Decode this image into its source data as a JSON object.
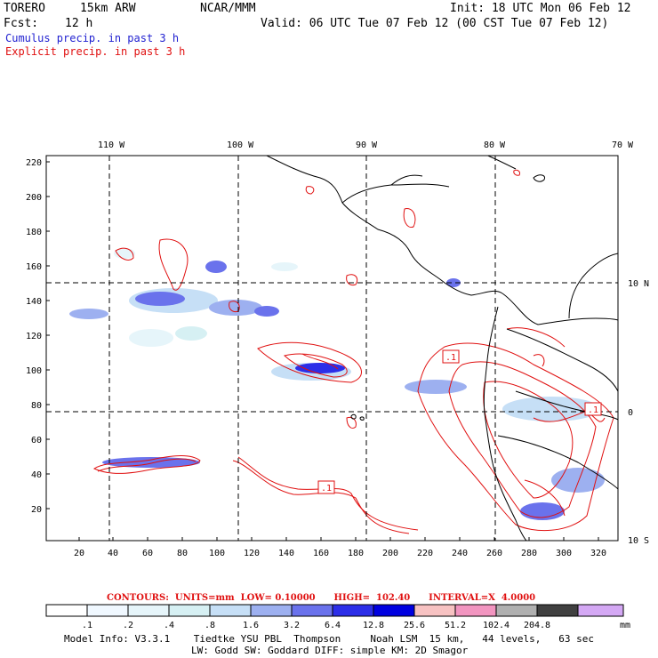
{
  "header": {
    "model": "TORERO",
    "resolution": "15km ARW",
    "org": "NCAR/MMM",
    "init": "Init: 18 UTC Mon 06 Feb 12",
    "fcst_label": "Fcst:",
    "fcst_value": "12 h",
    "valid": "Valid: 06 UTC Tue 07 Feb 12 (00 CST Tue 07 Feb 12)",
    "line_cumulus": "Cumulus precip. in past 3 h",
    "line_explicit": "Explicit precip. in past 3 h"
  },
  "colors": {
    "cumulus": "#1f1fd0",
    "explicit": "#e01010",
    "coast": "#000000"
  },
  "axes": {
    "top_labels": [
      "110 W",
      "100 W",
      "90 W",
      "80 W",
      "70 W"
    ],
    "right_labels": [
      "10 N",
      "0",
      "10 S"
    ],
    "left_ticks": [
      "220",
      "200",
      "180",
      "160",
      "140",
      "120",
      "100",
      "80",
      "60",
      "40",
      "20"
    ],
    "bottom_ticks": [
      "20",
      "40",
      "60",
      "80",
      "100",
      "120",
      "140",
      "160",
      "180",
      "200",
      "220",
      "240",
      "260",
      "280",
      "300",
      "320"
    ]
  },
  "labels": {
    "contour_a": ".1",
    "contour_b": ".1",
    "contour_c": ".1"
  },
  "contour_info": "CONTOURS:  UNITS=mm  LOW= 0.10000      HIGH=  102.40      INTERVAL=X  4.0000",
  "legend": {
    "values": [
      ".1",
      ".2",
      ".4",
      ".8",
      "1.6",
      "3.2",
      "6.4",
      "12.8",
      "25.6",
      "51.2",
      "102.4",
      "204.8"
    ],
    "unit": "mm",
    "colors": [
      "#ffffff",
      "#f0f8ff",
      "#e6f5fa",
      "#d6f0f3",
      "#c6dff6",
      "#9db0f0",
      "#6a72ec",
      "#2c2ee8",
      "#0000e0",
      "#f7c2c2",
      "#f295c0",
      "#b0b0b0",
      "#404040",
      "#d4a8f4"
    ]
  },
  "model_info_1": "Model Info: V3.3.1    Tiedtke YSU PBL  Thompson     Noah LSM  15 km,   44 levels,   63 sec",
  "model_info_2": "LW: Godd SW: Goddard DIFF: simple KM: 2D Smagor"
}
